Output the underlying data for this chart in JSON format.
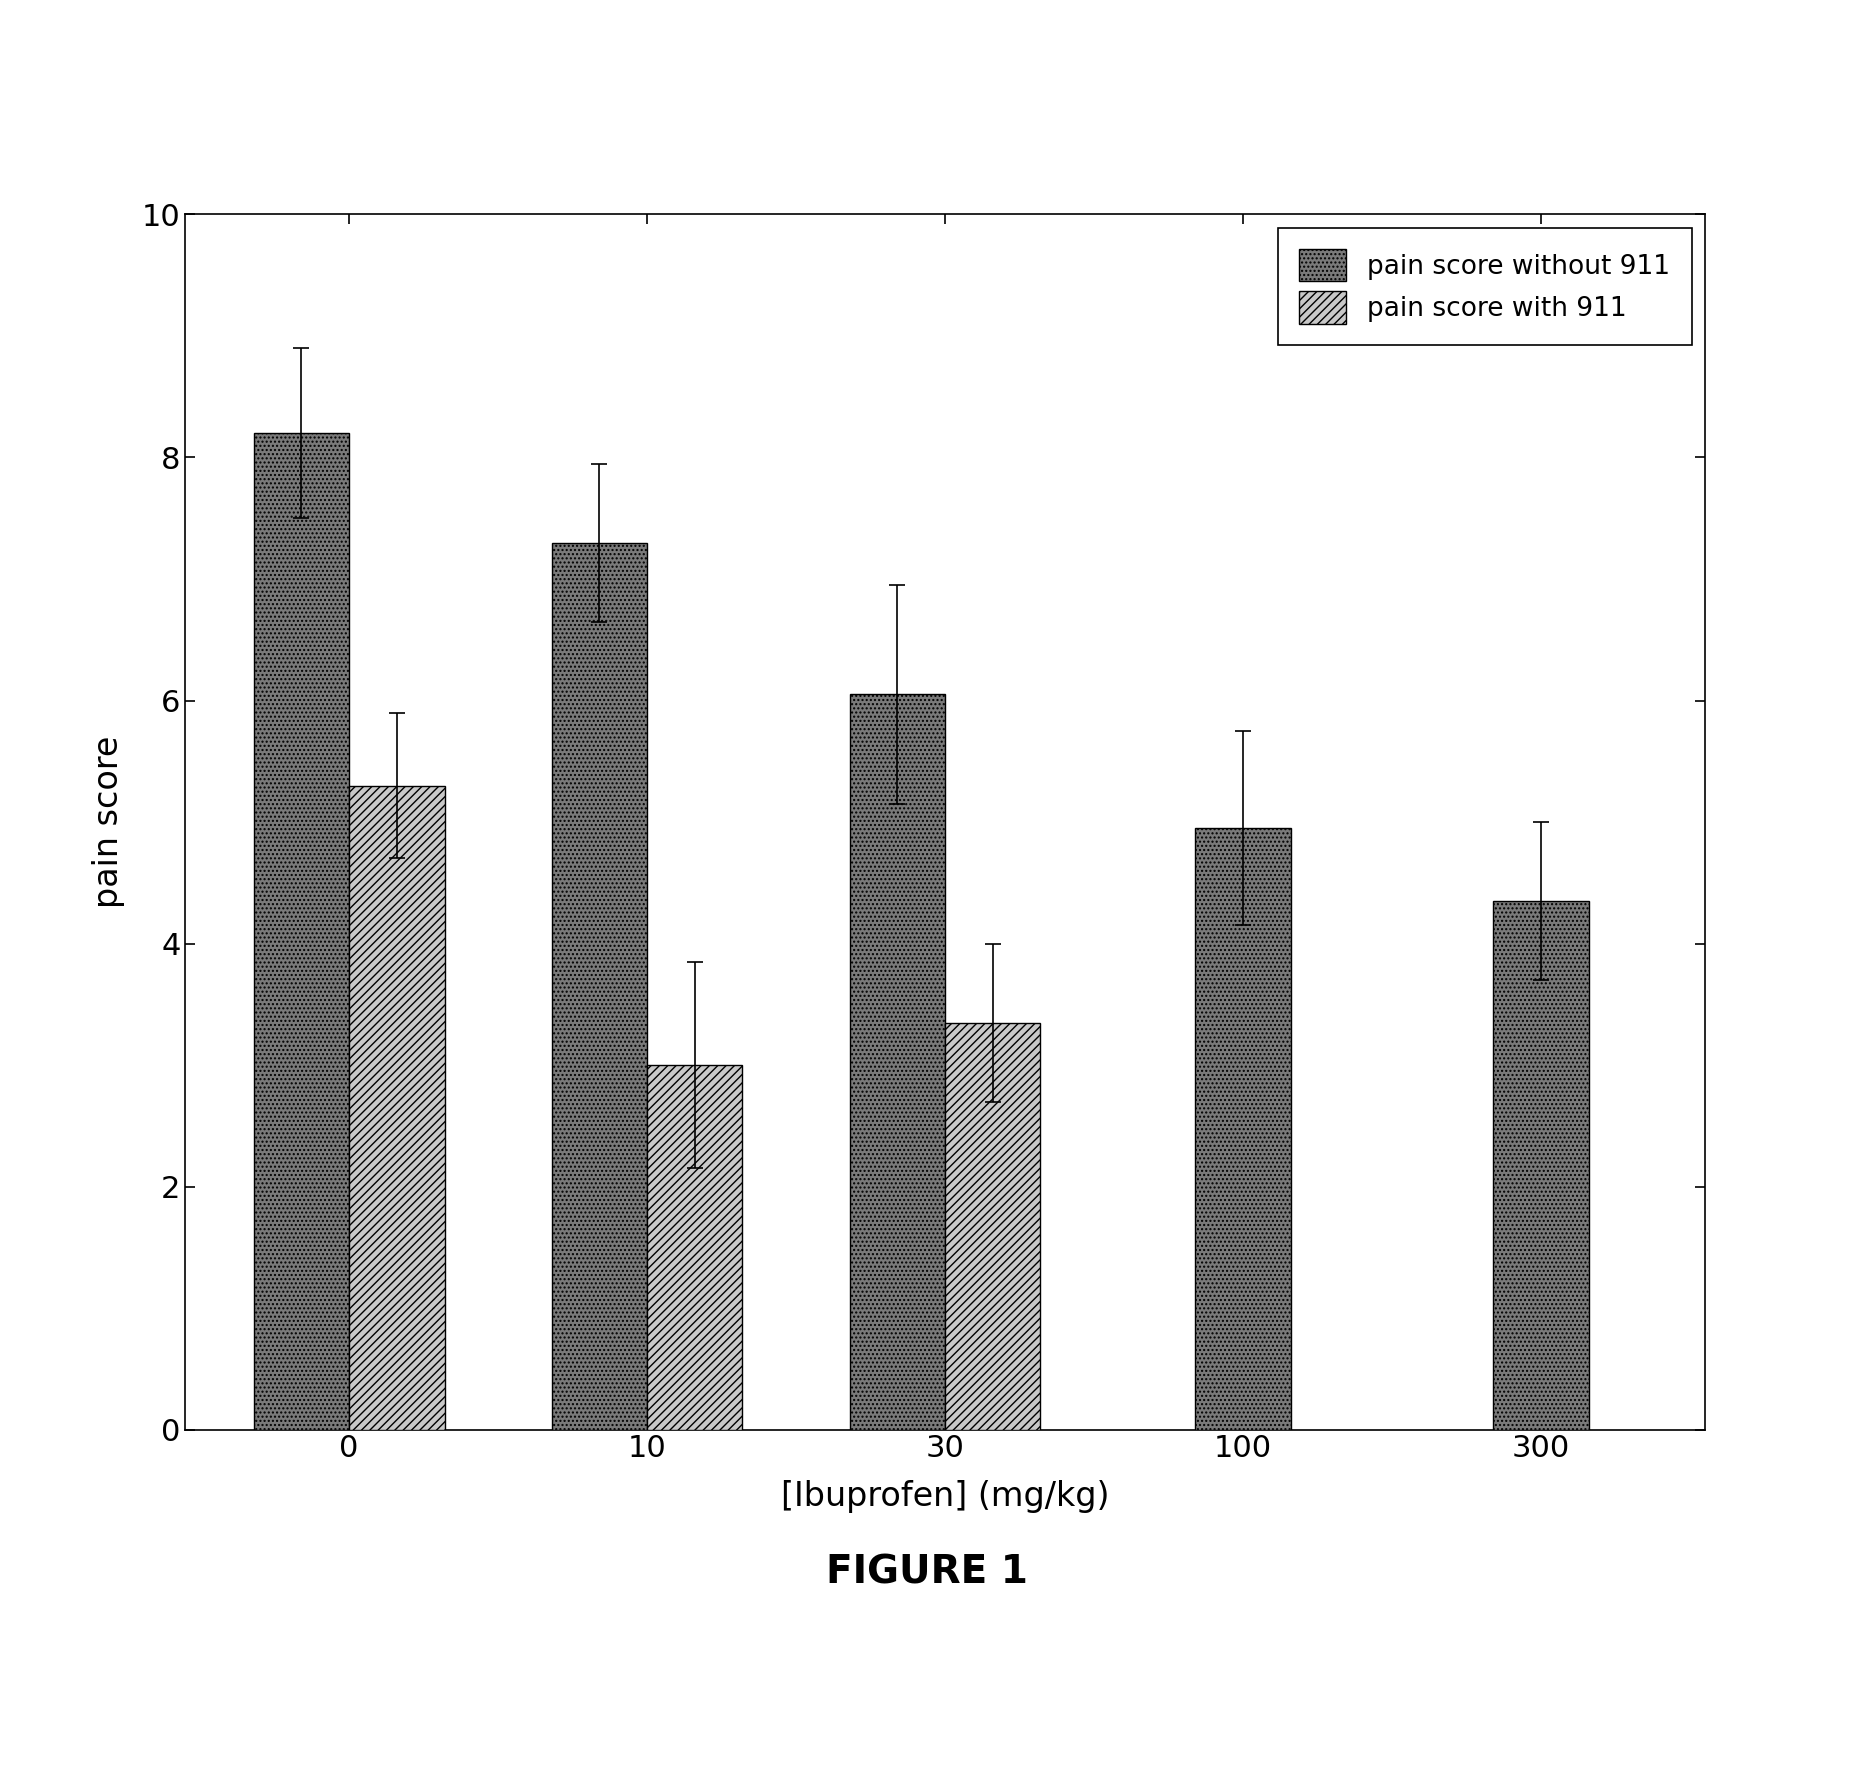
{
  "categories": [
    "0",
    "10",
    "30",
    "100",
    "300"
  ],
  "without_911_values": [
    8.2,
    7.3,
    6.05,
    4.95,
    4.35
  ],
  "without_911_errors": [
    0.7,
    0.65,
    0.9,
    0.8,
    0.65
  ],
  "with_911_values": [
    5.3,
    3.0,
    3.35,
    null,
    null
  ],
  "with_911_errors": [
    0.6,
    0.85,
    0.65,
    null,
    null
  ],
  "xlabel": "[Ibuprofen] (mg/kg)",
  "ylabel": "pain score",
  "ylim": [
    0,
    10
  ],
  "yticks": [
    0,
    2,
    4,
    6,
    8,
    10
  ],
  "legend_label_1": "pain score without 911",
  "legend_label_2": "pain score with 911",
  "figure_label": "FIGURE 1",
  "bar_width": 0.32,
  "dark_color": "#7a7a7a",
  "hatch_bar_facecolor": "#c8c8c8",
  "background_color": "#ffffff"
}
